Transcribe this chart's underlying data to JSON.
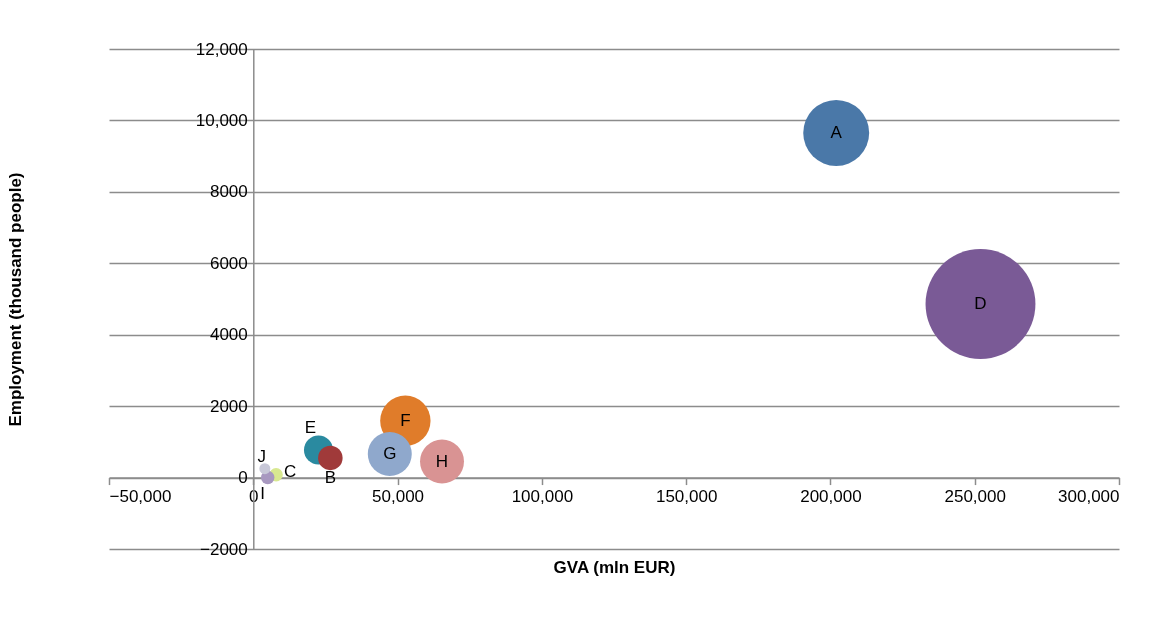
{
  "chart_data": {
    "type": "bubble",
    "xlabel": "GVA (mln EUR)",
    "ylabel": "Employment (thousand people)",
    "xlim": [
      -50000,
      300000
    ],
    "ylim": [
      -2000,
      12000
    ],
    "xticks": [
      {
        "value": -50000,
        "label": "−50,000"
      },
      0,
      {
        "value": 50000,
        "label": "50,000"
      },
      {
        "value": 100000,
        "label": "100,000"
      },
      {
        "value": 150000,
        "label": "150,000"
      },
      {
        "value": 200000,
        "label": "200,000"
      },
      {
        "value": 250000,
        "label": "250,000"
      },
      {
        "value": 300000,
        "label": "300,000"
      }
    ],
    "yticks": [
      {
        "value": -2000,
        "label": "−2000"
      },
      0,
      2000,
      4000,
      6000,
      8000,
      {
        "value": 10000,
        "label": "10,000"
      },
      {
        "value": 12000,
        "label": "12,000"
      }
    ],
    "grid": "y",
    "legend": false,
    "series": [
      {
        "name": "A",
        "color": "#4a78a8",
        "x": [
          202000
        ],
        "values": [
          9650
        ],
        "sizes": [
          0.36
        ]
      },
      {
        "name": "B",
        "color": "#a03a3a",
        "x": [
          26700
        ],
        "values": [
          550
        ],
        "sizes": [
          0.05
        ]
      },
      {
        "name": "C",
        "color": "#d8e890",
        "x": [
          7900
        ],
        "values": [
          80
        ],
        "sizes": [
          0.015
        ]
      },
      {
        "name": "D",
        "color": "#7a5a96",
        "x": [
          252000
        ],
        "values": [
          4860
        ],
        "sizes": [
          1
        ]
      },
      {
        "name": "E",
        "color": "#2a8aa0",
        "x": [
          22600
        ],
        "values": [
          770
        ],
        "sizes": [
          0.07
        ]
      },
      {
        "name": "F",
        "color": "#e07c2a",
        "x": [
          52700
        ],
        "values": [
          1590
        ],
        "sizes": [
          0.21
        ]
      },
      {
        "name": "G",
        "color": "#8fa8cc",
        "x": [
          47300
        ],
        "values": [
          660
        ],
        "sizes": [
          0.16
        ]
      },
      {
        "name": "H",
        "color": "#d99393",
        "x": [
          65400
        ],
        "values": [
          450
        ],
        "sizes": [
          0.16
        ]
      },
      {
        "name": "I",
        "color": "#a898c0",
        "x": [
          5000
        ],
        "values": [
          0
        ],
        "sizes": [
          0.015
        ]
      },
      {
        "name": "J",
        "color": "#c8c8d8",
        "x": [
          4000
        ],
        "values": [
          250
        ],
        "sizes": [
          0.01
        ]
      }
    ]
  }
}
